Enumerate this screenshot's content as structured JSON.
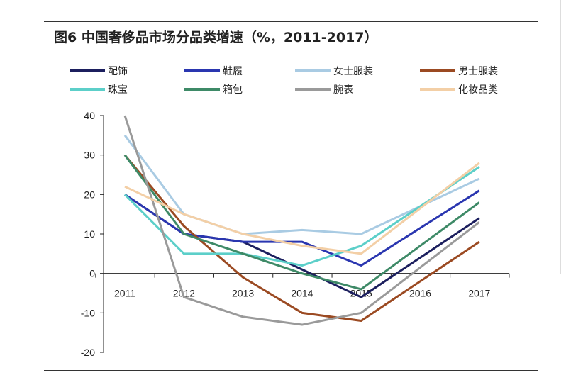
{
  "chart_data": {
    "type": "line",
    "title": "图6  中国奢侈品市场分品类增速（%，2011-2017）",
    "xlabel": "",
    "ylabel": "",
    "categories": [
      "2011",
      "2012",
      "2013",
      "2014",
      "2015",
      "2016",
      "2017"
    ],
    "ylim": [
      -20,
      40
    ],
    "yticks": [
      "40",
      "30",
      "20",
      "10",
      "0",
      "-10",
      "-20"
    ],
    "grid": false,
    "legend": "top",
    "series": [
      {
        "name": "配饰",
        "color": "#1c1f5e",
        "values": [
          20,
          10,
          8,
          1,
          -6,
          4,
          14
        ]
      },
      {
        "name": "鞋履",
        "color": "#2a36b0",
        "values": [
          20,
          10,
          8,
          8,
          2,
          11.5,
          21
        ]
      },
      {
        "name": "女士服装",
        "color": "#a9cbe3",
        "values": [
          35,
          15,
          10,
          11,
          10,
          17,
          24
        ]
      },
      {
        "name": "男士服装",
        "color": "#9b4a22",
        "values": [
          30,
          12,
          -1,
          -10,
          -12,
          -2,
          8
        ]
      },
      {
        "name": "珠宝",
        "color": "#5ccfc9",
        "values": [
          20,
          5,
          5,
          2,
          7,
          17,
          27
        ]
      },
      {
        "name": "箱包",
        "color": "#3e8a67",
        "values": [
          30,
          10,
          5,
          0,
          -4,
          7,
          18
        ]
      },
      {
        "name": "腕表",
        "color": "#9a9a9a",
        "values": [
          40,
          -6,
          -11,
          -13,
          -10,
          1.5,
          13
        ]
      },
      {
        "name": "化妆品类",
        "color": "#f3cfa6",
        "values": [
          22,
          15,
          10,
          7,
          5,
          16.5,
          28
        ]
      }
    ]
  }
}
